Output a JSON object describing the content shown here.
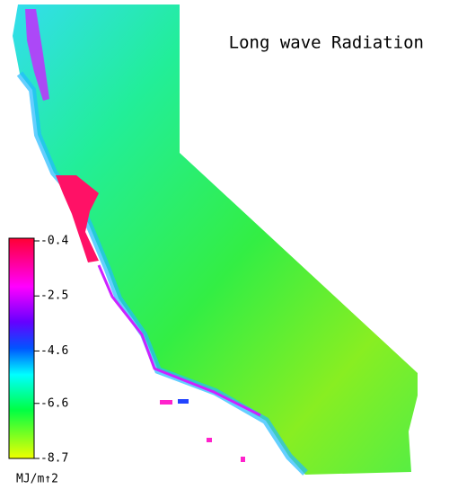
{
  "title": "Long wave Radiation",
  "colorbar": {
    "ticks": [
      -0.4,
      -2.5,
      -4.6,
      -6.6,
      -8.7
    ],
    "unit": "MJ/m↑2"
  }
}
